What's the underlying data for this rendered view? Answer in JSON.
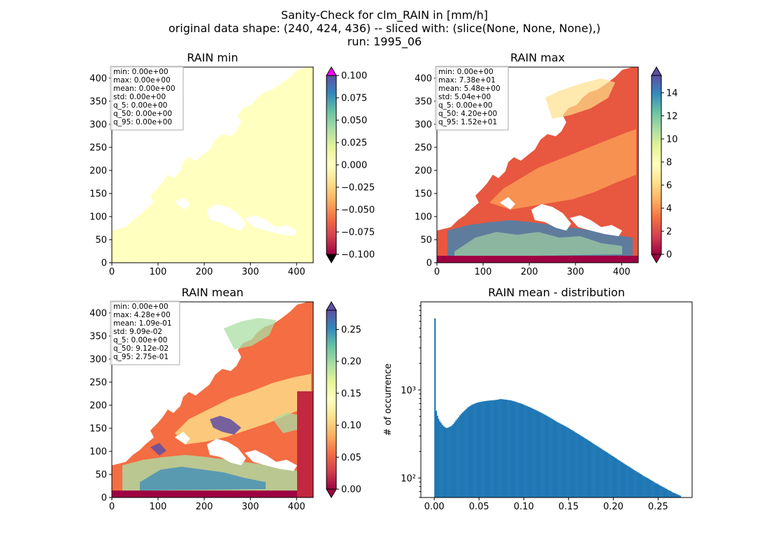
{
  "figure": {
    "suptitle_lines": [
      "Sanity-Check for clm_RAIN in [mm/h]",
      "original data shape: (240, 424, 436) -- sliced with: (slice(None, None, None),)",
      "run: 1995_06"
    ]
  },
  "chart_data": [
    {
      "type": "heatmap",
      "title": "RAIN min",
      "xlim": [
        0,
        436
      ],
      "ylim": [
        0,
        424
      ],
      "xticks": [
        0,
        100,
        200,
        300,
        400
      ],
      "yticks": [
        0,
        50,
        100,
        150,
        200,
        250,
        300,
        350,
        400
      ],
      "colormap": "Spectral",
      "colorbar": {
        "range": [
          -0.1,
          0.1
        ],
        "ticks": [
          0.1,
          0.075,
          0.05,
          0.025,
          0.0,
          -0.025,
          -0.05,
          -0.075,
          -0.1
        ],
        "tick_labels": [
          "0.100",
          "0.075",
          "0.050",
          "0.025",
          "0.000",
          "−0.025",
          "−0.050",
          "−0.075",
          "−0.100"
        ],
        "extend": "both",
        "over_color": "#ff00ff",
        "under_color": "#000000"
      },
      "stats": [
        "min: 0.00e+00",
        "max: 0.00e+00",
        "mean: 0.00e+00",
        "std: 0.00e+00",
        "q_5: 0.00e+00",
        "q_50: 0.00e+00",
        "q_95: 0.00e+00"
      ]
    },
    {
      "type": "heatmap",
      "title": "RAIN max",
      "xlim": [
        0,
        436
      ],
      "ylim": [
        0,
        424
      ],
      "xticks": [
        0,
        100,
        200,
        300,
        400
      ],
      "yticks": [
        0,
        50,
        100,
        150,
        200,
        250,
        300,
        350,
        400
      ],
      "colormap": "Spectral",
      "colorbar": {
        "range": [
          0,
          15.5
        ],
        "ticks": [
          14,
          12,
          10,
          8,
          6,
          4,
          2,
          0
        ],
        "tick_labels": [
          "14",
          "12",
          "10",
          "8",
          "6",
          "4",
          "2",
          "0"
        ],
        "extend": "both"
      },
      "stats": [
        "min: 0.00e+00",
        "max: 7.38e+01",
        "mean: 5.48e+00",
        "std: 5.04e+00",
        "q_5: 0.00e+00",
        "q_50: 4.20e+00",
        "q_95: 1.52e+01"
      ]
    },
    {
      "type": "heatmap",
      "title": "RAIN mean",
      "xlim": [
        0,
        436
      ],
      "ylim": [
        0,
        424
      ],
      "xticks": [
        0,
        100,
        200,
        300,
        400
      ],
      "yticks": [
        0,
        50,
        100,
        150,
        200,
        250,
        300,
        350,
        400
      ],
      "colormap": "Spectral",
      "colorbar": {
        "range": [
          0,
          0.28
        ],
        "ticks": [
          0.25,
          0.2,
          0.15,
          0.1,
          0.05,
          0.0
        ],
        "tick_labels": [
          "0.25",
          "0.20",
          "0.15",
          "0.10",
          "0.05",
          "0.00"
        ],
        "extend": "both"
      },
      "stats": [
        "min: 0.00e+00",
        "max: 4.28e+00",
        "mean: 1.09e-01",
        "std: 9.09e-02",
        "q_5: 0.00e+00",
        "q_50: 9.12e-02",
        "q_95: 2.75e-01"
      ]
    },
    {
      "type": "bar",
      "title": "RAIN mean - distribution",
      "ylabel": "# of occurrence",
      "yscale": "log",
      "xlim": [
        -0.015,
        0.288
      ],
      "ylim": [
        60,
        10000
      ],
      "xticks": [
        0.0,
        0.05,
        0.1,
        0.15,
        0.2,
        0.25
      ],
      "xtick_labels": [
        "0.00",
        "0.05",
        "0.10",
        "0.15",
        "0.20",
        "0.25"
      ],
      "yticks": [
        100,
        1000
      ],
      "ytick_labels": [
        "10²",
        "10³"
      ],
      "color": "#1f77b4",
      "bin_width": 0.00137,
      "bins": [
        [
          0.0,
          6500
        ],
        [
          0.00137,
          580
        ],
        [
          0.0027,
          510
        ],
        [
          0.004,
          470
        ],
        [
          0.0055,
          440
        ],
        [
          0.007,
          420
        ],
        [
          0.0085,
          400
        ],
        [
          0.01,
          385
        ],
        [
          0.0115,
          375
        ],
        [
          0.013,
          370
        ],
        [
          0.0145,
          372
        ],
        [
          0.016,
          380
        ],
        [
          0.0175,
          385
        ],
        [
          0.019,
          395
        ],
        [
          0.0205,
          410
        ],
        [
          0.022,
          430
        ],
        [
          0.0235,
          450
        ],
        [
          0.025,
          470
        ],
        [
          0.0265,
          490
        ],
        [
          0.028,
          515
        ],
        [
          0.0295,
          535
        ],
        [
          0.031,
          555
        ],
        [
          0.0325,
          575
        ],
        [
          0.034,
          595
        ],
        [
          0.0355,
          615
        ],
        [
          0.037,
          635
        ],
        [
          0.0385,
          650
        ],
        [
          0.04,
          665
        ],
        [
          0.0415,
          680
        ],
        [
          0.043,
          690
        ],
        [
          0.0445,
          700
        ],
        [
          0.046,
          710
        ],
        [
          0.0475,
          718
        ],
        [
          0.049,
          725
        ],
        [
          0.0505,
          730
        ],
        [
          0.052,
          735
        ],
        [
          0.0535,
          740
        ],
        [
          0.055,
          745
        ],
        [
          0.0565,
          748
        ],
        [
          0.058,
          752
        ],
        [
          0.0595,
          755
        ],
        [
          0.061,
          758
        ],
        [
          0.0625,
          760
        ],
        [
          0.064,
          762
        ],
        [
          0.0655,
          765
        ],
        [
          0.067,
          768
        ],
        [
          0.0685,
          770
        ],
        [
          0.07,
          775
        ],
        [
          0.0715,
          780
        ],
        [
          0.073,
          790
        ],
        [
          0.0745,
          785
        ],
        [
          0.076,
          782
        ],
        [
          0.0775,
          778
        ],
        [
          0.079,
          776
        ],
        [
          0.0805,
          772
        ],
        [
          0.082,
          768
        ],
        [
          0.0835,
          765
        ],
        [
          0.085,
          760
        ],
        [
          0.0865,
          752
        ],
        [
          0.088,
          745
        ],
        [
          0.0895,
          738
        ],
        [
          0.091,
          730
        ],
        [
          0.0925,
          720
        ],
        [
          0.094,
          712
        ],
        [
          0.0955,
          705
        ],
        [
          0.097,
          695
        ],
        [
          0.0985,
          685
        ],
        [
          0.1,
          675
        ],
        [
          0.1015,
          665
        ],
        [
          0.103,
          655
        ],
        [
          0.1045,
          645
        ],
        [
          0.106,
          635
        ],
        [
          0.1075,
          625
        ],
        [
          0.109,
          615
        ],
        [
          0.1105,
          605
        ],
        [
          0.112,
          595
        ],
        [
          0.1135,
          585
        ],
        [
          0.115,
          575
        ],
        [
          0.1165,
          565
        ],
        [
          0.118,
          555
        ],
        [
          0.1195,
          545
        ],
        [
          0.121,
          535
        ],
        [
          0.1225,
          525
        ],
        [
          0.124,
          515
        ],
        [
          0.1255,
          505
        ],
        [
          0.127,
          495
        ],
        [
          0.1285,
          485
        ],
        [
          0.13,
          475
        ],
        [
          0.1315,
          465
        ],
        [
          0.133,
          455
        ],
        [
          0.1345,
          445
        ],
        [
          0.136,
          435
        ],
        [
          0.1375,
          428
        ],
        [
          0.139,
          420
        ],
        [
          0.1405,
          412
        ],
        [
          0.142,
          405
        ],
        [
          0.1435,
          397
        ],
        [
          0.145,
          390
        ],
        [
          0.1465,
          382
        ],
        [
          0.148,
          375
        ],
        [
          0.1495,
          368
        ],
        [
          0.151,
          360
        ],
        [
          0.1525,
          352
        ],
        [
          0.154,
          345
        ],
        [
          0.1555,
          338
        ],
        [
          0.157,
          330
        ],
        [
          0.1585,
          323
        ],
        [
          0.16,
          316
        ],
        [
          0.1615,
          309
        ],
        [
          0.163,
          302
        ],
        [
          0.1645,
          296
        ],
        [
          0.166,
          290
        ],
        [
          0.1675,
          283
        ],
        [
          0.169,
          277
        ],
        [
          0.1705,
          271
        ],
        [
          0.172,
          265
        ],
        [
          0.1735,
          259
        ],
        [
          0.175,
          253
        ],
        [
          0.1765,
          247
        ],
        [
          0.178,
          242
        ],
        [
          0.1795,
          236
        ],
        [
          0.181,
          231
        ],
        [
          0.1825,
          226
        ],
        [
          0.184,
          221
        ],
        [
          0.1855,
          216
        ],
        [
          0.187,
          211
        ],
        [
          0.1885,
          206
        ],
        [
          0.19,
          202
        ],
        [
          0.1915,
          197
        ],
        [
          0.193,
          193
        ],
        [
          0.1945,
          188
        ],
        [
          0.196,
          184
        ],
        [
          0.1975,
          180
        ],
        [
          0.199,
          176
        ],
        [
          0.2005,
          172
        ],
        [
          0.202,
          168
        ],
        [
          0.2035,
          164
        ],
        [
          0.205,
          160
        ],
        [
          0.2065,
          157
        ],
        [
          0.208,
          153
        ],
        [
          0.2095,
          150
        ],
        [
          0.211,
          146
        ],
        [
          0.2125,
          143
        ],
        [
          0.214,
          140
        ],
        [
          0.2155,
          137
        ],
        [
          0.217,
          134
        ],
        [
          0.2185,
          131
        ],
        [
          0.22,
          128
        ],
        [
          0.2215,
          125
        ],
        [
          0.223,
          122
        ],
        [
          0.2245,
          120
        ],
        [
          0.226,
          117
        ],
        [
          0.2275,
          115
        ],
        [
          0.229,
          112
        ],
        [
          0.2305,
          110
        ],
        [
          0.232,
          107
        ],
        [
          0.2335,
          105
        ],
        [
          0.235,
          103
        ],
        [
          0.2365,
          101
        ],
        [
          0.238,
          99
        ],
        [
          0.2395,
          97
        ],
        [
          0.241,
          95
        ],
        [
          0.2425,
          93
        ],
        [
          0.244,
          91
        ],
        [
          0.2455,
          89
        ],
        [
          0.247,
          87
        ],
        [
          0.2485,
          86
        ],
        [
          0.25,
          84
        ],
        [
          0.2515,
          82
        ],
        [
          0.253,
          81
        ],
        [
          0.2545,
          79
        ],
        [
          0.256,
          78
        ],
        [
          0.2575,
          76
        ],
        [
          0.259,
          75
        ],
        [
          0.2605,
          73
        ],
        [
          0.262,
          72
        ],
        [
          0.2635,
          71
        ],
        [
          0.265,
          69
        ],
        [
          0.2665,
          68
        ],
        [
          0.268,
          67
        ],
        [
          0.2695,
          66
        ],
        [
          0.271,
          65
        ],
        [
          0.2725,
          64
        ],
        [
          0.274,
          63
        ]
      ]
    }
  ],
  "colors": {
    "axis": "#000000",
    "stats_box_border": "#aaaaaa",
    "spectral_stops": [
      "#9e0142",
      "#d53e4f",
      "#f46d43",
      "#fdae61",
      "#fee08b",
      "#ffffbf",
      "#e6f598",
      "#abdda4",
      "#66c2a5",
      "#3288bd",
      "#5e4fa2"
    ]
  }
}
